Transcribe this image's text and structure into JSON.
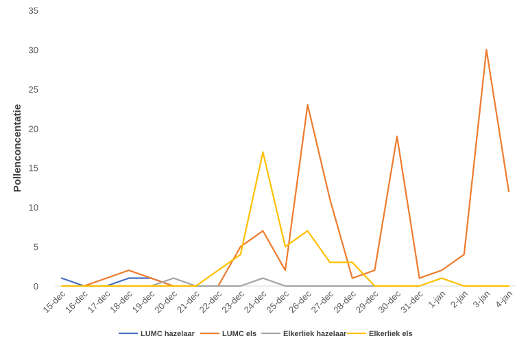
{
  "chart_data": {
    "type": "line",
    "ylabel": "Pollenconcentatie",
    "xlabel": "",
    "title": "",
    "ylim": [
      0,
      35
    ],
    "yticks": [
      0,
      5,
      10,
      15,
      20,
      25,
      30,
      35
    ],
    "grid": false,
    "legend_position": "bottom",
    "categories": [
      "15-dec",
      "16-dec",
      "17-dec",
      "18-dec",
      "19-dec",
      "20-dec",
      "21-dec",
      "22-dec",
      "23-dec",
      "24-dec",
      "25-dec",
      "26-dec",
      "27-dec",
      "28-dec",
      "29-dec",
      "30-dec",
      "31-dec",
      "1-jan",
      "2-jan",
      "3-jan",
      "4-jan"
    ],
    "series": [
      {
        "name": "LUMC hazelaar",
        "color": "#4472C4",
        "values": [
          1,
          0,
          0,
          1,
          1,
          0,
          null,
          null,
          null,
          null,
          null,
          null,
          null,
          null,
          null,
          null,
          null,
          null,
          null,
          null,
          null
        ]
      },
      {
        "name": "LUMC els",
        "color": "#ED7D31",
        "values": [
          null,
          0,
          1,
          2,
          1,
          0,
          null,
          0,
          5,
          7,
          2,
          23,
          11,
          1,
          2,
          19,
          1,
          2,
          4,
          30,
          12
        ]
      },
      {
        "name": "Elkerliek hazelaar",
        "color": "#A5A5A5",
        "values": [
          null,
          null,
          null,
          null,
          0,
          1,
          0,
          0,
          0,
          1,
          0,
          0,
          0,
          0,
          0,
          null,
          null,
          null,
          null,
          null,
          null
        ]
      },
      {
        "name": "Elkerliek els",
        "color": "#FFC000",
        "values": [
          0,
          0,
          0,
          0,
          0,
          0,
          0,
          2,
          4,
          17,
          5,
          7,
          3,
          3,
          0,
          0,
          0,
          1,
          0,
          0,
          0
        ]
      }
    ]
  }
}
